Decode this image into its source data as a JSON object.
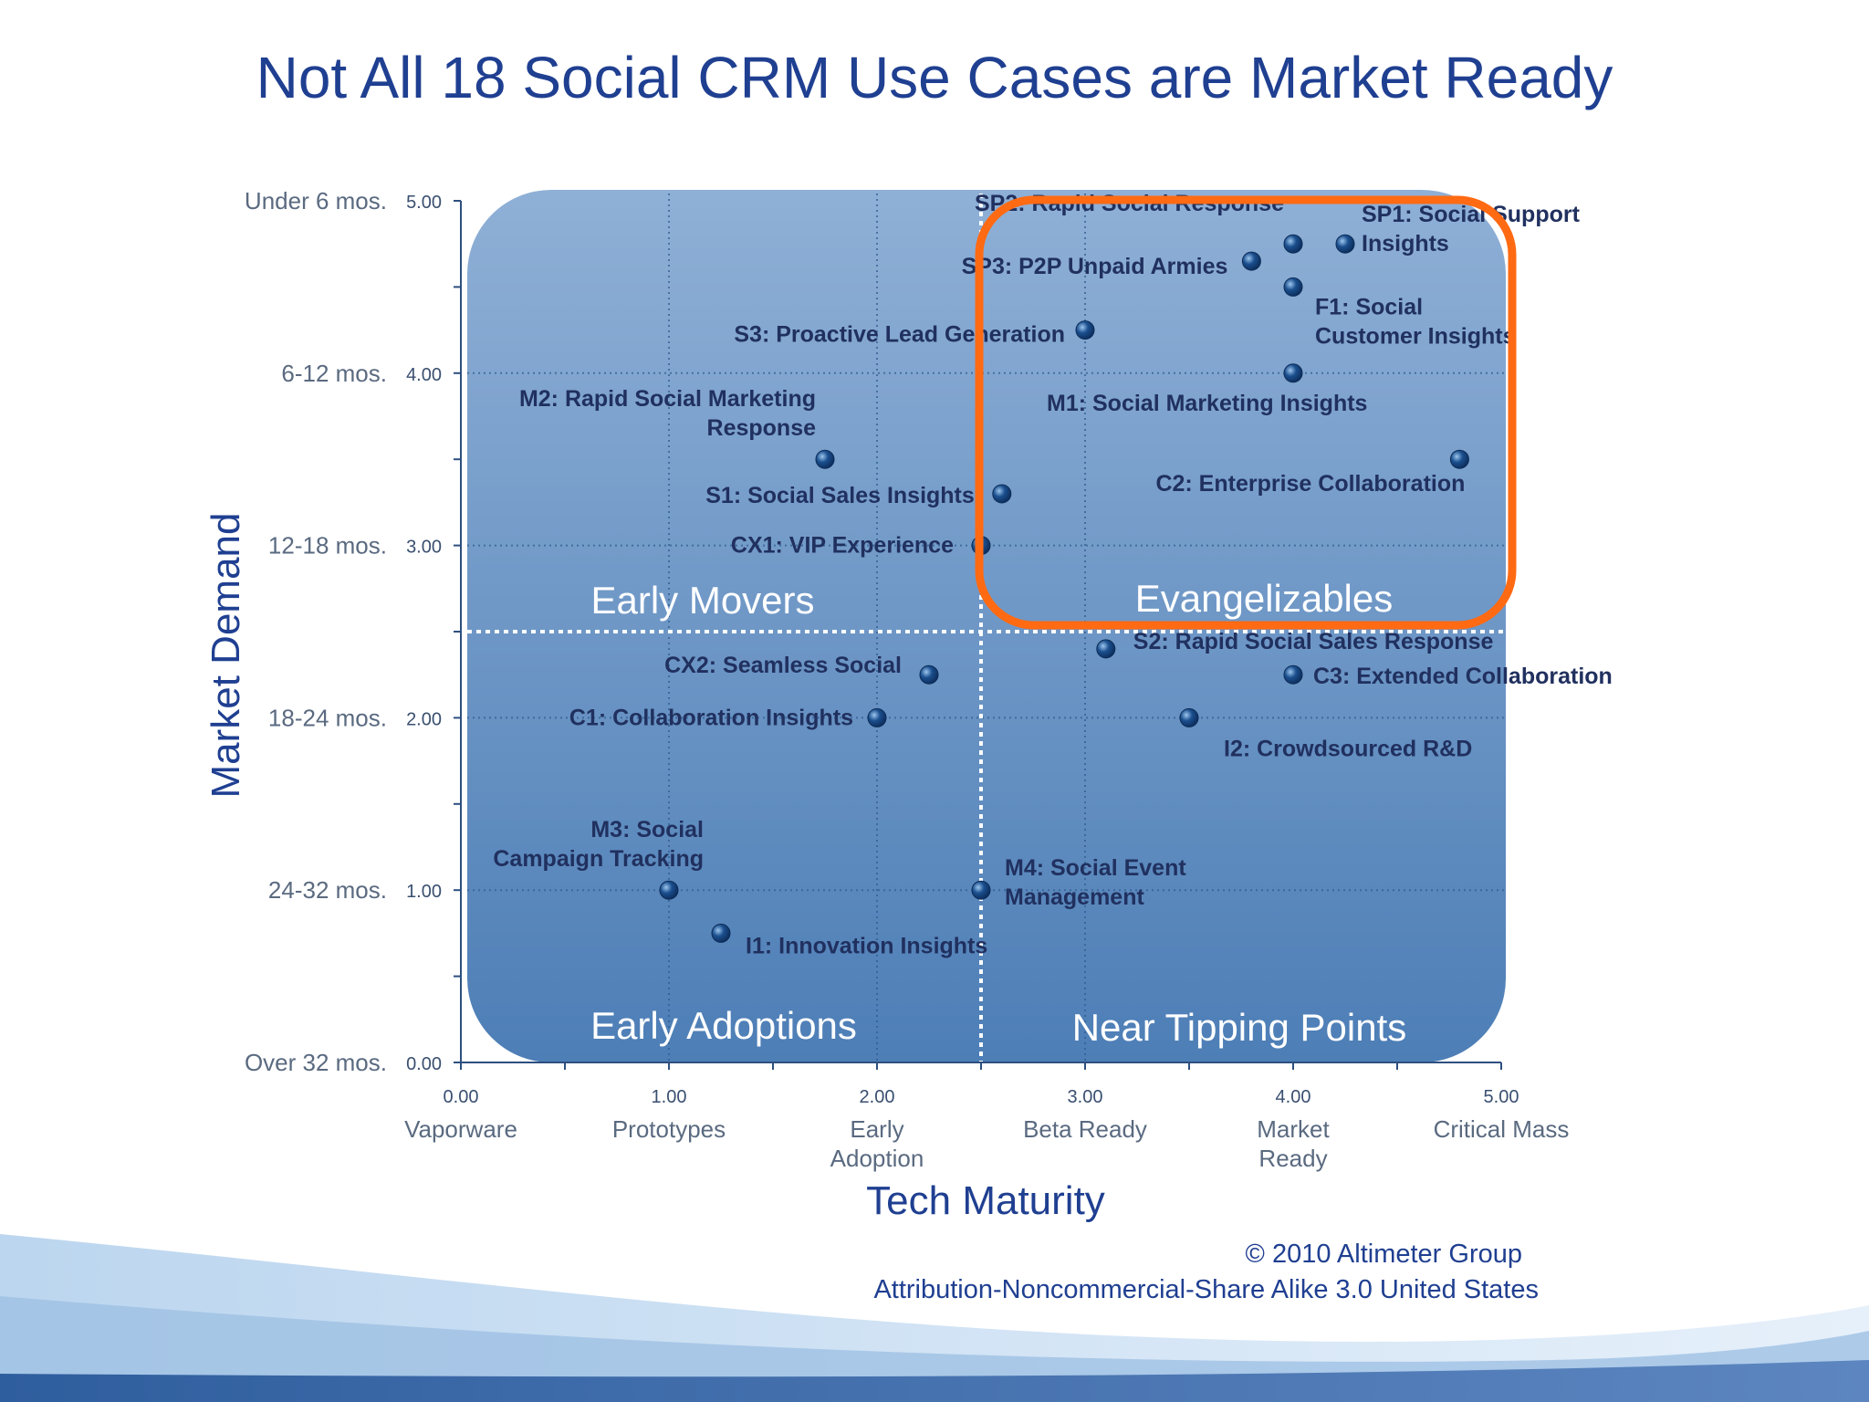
{
  "slide": {
    "title": "Not All 18 Social CRM Use Cases are Market Ready",
    "credit_line_1": "© 2010 Altimeter Group",
    "credit_line_2": "Attribution-Noncommercial-Share Alike 3.0 United States"
  },
  "colors": {
    "title": "#1f3f91",
    "plot_top": "#8fb0d6",
    "plot_bottom": "#4d7eb6",
    "label": "#20305f",
    "point": "#1b4f8e",
    "highlight": "#ff6a13",
    "quadrant_label": "#ffffff"
  },
  "chart_data": {
    "type": "scatter",
    "title": "",
    "xlabel": "Tech Maturity",
    "ylabel": "Market Demand",
    "xlim": [
      0,
      5
    ],
    "ylim": [
      0,
      5
    ],
    "x_ticks": [
      {
        "value": 0,
        "number": "0.00",
        "label": [
          "Vaporware"
        ]
      },
      {
        "value": 1,
        "number": "1.00",
        "label": [
          "Prototypes"
        ]
      },
      {
        "value": 2,
        "number": "2.00",
        "label": [
          "Early",
          "Adoption"
        ]
      },
      {
        "value": 3,
        "number": "3.00",
        "label": [
          "Beta Ready"
        ]
      },
      {
        "value": 4,
        "number": "4.00",
        "label": [
          "Market",
          "Ready"
        ]
      },
      {
        "value": 5,
        "number": "5.00",
        "label": [
          "Critical Mass"
        ]
      }
    ],
    "y_ticks": [
      {
        "value": 5,
        "number": "5.00",
        "label": "Under 6 mos."
      },
      {
        "value": 4,
        "number": "4.00",
        "label": "6-12 mos."
      },
      {
        "value": 3,
        "number": "3.00",
        "label": "12-18 mos."
      },
      {
        "value": 2,
        "number": "2.00",
        "label": "18-24 mos."
      },
      {
        "value": 1,
        "number": "1.00",
        "label": "24-32 mos."
      },
      {
        "value": 0,
        "number": "0.00",
        "label": "Over 32 mos."
      }
    ],
    "grid": true,
    "divider_x": 2.5,
    "divider_y": 2.5,
    "quadrants": [
      "Early Movers",
      "Evangelizables",
      "Early Adoptions",
      "Near Tipping Points"
    ],
    "highlighted_quadrant": "Evangelizables",
    "points": [
      {
        "id": "SP1",
        "label": "SP1: Social Support Insights",
        "x": 4.25,
        "y": 4.75
      },
      {
        "id": "SP2",
        "label": "SP2: Rapid Social Response",
        "x": 4.0,
        "y": 4.75
      },
      {
        "id": "SP3",
        "label": "SP3: P2P Unpaid Armies",
        "x": 3.8,
        "y": 4.65
      },
      {
        "id": "F1",
        "label": "F1: Social Customer Insights",
        "x": 4.0,
        "y": 4.5
      },
      {
        "id": "S3",
        "label": "S3: Proactive Lead Generation",
        "x": 3.0,
        "y": 4.25
      },
      {
        "id": "M1",
        "label": "M1: Social Marketing Insights",
        "x": 4.0,
        "y": 4.0
      },
      {
        "id": "M2",
        "label": "M2: Rapid Social Marketing Response",
        "x": 1.75,
        "y": 3.5
      },
      {
        "id": "C2",
        "label": "C2: Enterprise Collaboration",
        "x": 4.8,
        "y": 3.5
      },
      {
        "id": "S1",
        "label": "S1: Social Sales Insights",
        "x": 2.6,
        "y": 3.3
      },
      {
        "id": "CX1",
        "label": "CX1: VIP Experience",
        "x": 2.5,
        "y": 3.0
      },
      {
        "id": "S2",
        "label": "S2: Rapid Social Sales Response",
        "x": 3.1,
        "y": 2.4
      },
      {
        "id": "CX2",
        "label": "CX2: Seamless Social",
        "x": 2.25,
        "y": 2.25
      },
      {
        "id": "C3",
        "label": "C3: Extended Collaboration",
        "x": 4.0,
        "y": 2.25
      },
      {
        "id": "C1",
        "label": "C1: Collaboration Insights",
        "x": 2.0,
        "y": 2.0
      },
      {
        "id": "I2",
        "label": "I2: Crowdsourced R&D",
        "x": 3.5,
        "y": 2.0
      },
      {
        "id": "M3",
        "label": "M3: Social Campaign Tracking",
        "x": 1.0,
        "y": 1.0
      },
      {
        "id": "M4",
        "label": "M4: Social Event Management",
        "x": 2.5,
        "y": 1.0
      },
      {
        "id": "I1",
        "label": "I1: Innovation Insights",
        "x": 1.25,
        "y": 0.75
      }
    ]
  }
}
